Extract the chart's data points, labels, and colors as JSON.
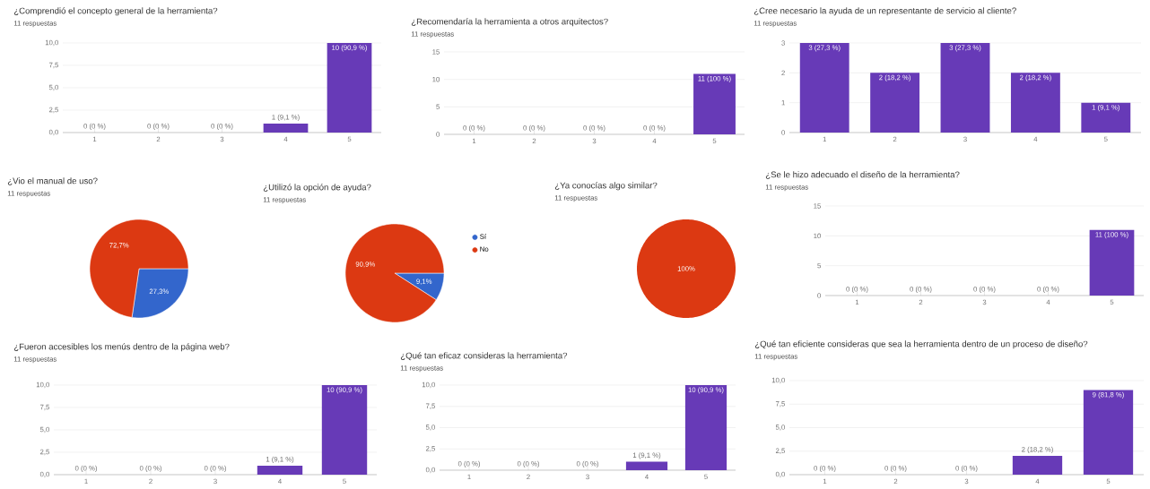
{
  "chart_data": [
    {
      "type": "bar",
      "title": "¿Comprendió el concepto general de la herramienta?",
      "subtitle": "11 respuestas",
      "categories": [
        "1",
        "2",
        "3",
        "4",
        "5"
      ],
      "values": [
        0,
        0,
        0,
        1,
        10
      ],
      "color": "#673ab7",
      "value_labels": [
        "0 (0 %)",
        "0 (0 %)",
        "0 (0 %)",
        "1 (9,1 %)",
        "10 (90,9 %)"
      ],
      "ylim": [
        0,
        10
      ],
      "yticks": [
        {
          "value": 0,
          "label": "0,0"
        },
        {
          "value": 2.5,
          "label": "2,5"
        },
        {
          "value": 5,
          "label": "5,0"
        },
        {
          "value": 7.5,
          "label": "7,5"
        },
        {
          "value": 10,
          "label": "10,0"
        }
      ],
      "grid": "y"
    },
    {
      "type": "bar",
      "title": "¿Recomendaría la herramienta a otros arquitectos?",
      "subtitle": "11 respuestas",
      "categories": [
        "1",
        "2",
        "3",
        "4",
        "5"
      ],
      "values": [
        0,
        0,
        0,
        0,
        11
      ],
      "color": "#673ab7",
      "value_labels": [
        "0 (0 %)",
        "0 (0 %)",
        "0 (0 %)",
        "0 (0 %)",
        "11 (100 %)"
      ],
      "ylim": [
        0,
        15
      ],
      "yticks": [
        0,
        5,
        10,
        15
      ],
      "grid": "y"
    },
    {
      "type": "bar",
      "title": "¿Cree necesario la ayuda de un representante de servicio al cliente?",
      "subtitle": "11 respuestas",
      "categories": [
        "1",
        "2",
        "3",
        "4",
        "5"
      ],
      "values": [
        3,
        2,
        3,
        2,
        1
      ],
      "color": "#673ab7",
      "value_labels": [
        "3 (27,3 %)",
        "2 (18,2 %)",
        "3 (27,3 %)",
        "2 (18,2 %)",
        "1 (9,1 %)"
      ],
      "ylim": [
        0,
        3
      ],
      "yticks": [
        0,
        1,
        2,
        3
      ],
      "grid": "y"
    },
    {
      "type": "pie",
      "title": "¿Vio el manual de uso?",
      "subtitle": "11 respuestas",
      "categories": [
        null,
        null
      ],
      "values": [
        27.3,
        72.7
      ],
      "colors": [
        "#3366cc",
        "#dc3912"
      ],
      "value_labels": [
        "27,3%",
        "72,7%"
      ]
    },
    {
      "type": "pie",
      "title": "¿Utilizó la opción de ayuda?",
      "subtitle": "11 respuestas",
      "categories": [
        "Sí",
        "No"
      ],
      "values": [
        9.1,
        90.9
      ],
      "colors": [
        "#3366cc",
        "#dc3912"
      ],
      "value_labels": [
        "9,1%",
        "90,9%"
      ],
      "legend": "right"
    },
    {
      "type": "pie",
      "title": "¿Ya conocías algo similar?",
      "subtitle": "11 respuestas",
      "categories": [
        null
      ],
      "values": [
        100
      ],
      "colors": [
        "#dc3912"
      ],
      "value_labels": [
        "100%"
      ]
    },
    {
      "type": "bar",
      "title": "¿Se le hizo adecuado el diseño de la herramienta?",
      "subtitle": "11 respuestas",
      "categories": [
        "1",
        "2",
        "3",
        "4",
        "5"
      ],
      "values": [
        0,
        0,
        0,
        0,
        11
      ],
      "color": "#673ab7",
      "value_labels": [
        "0 (0 %)",
        "0 (0 %)",
        "0 (0 %)",
        "0 (0 %)",
        "11 (100 %)"
      ],
      "ylim": [
        0,
        15
      ],
      "yticks": [
        0,
        5,
        10,
        15
      ],
      "grid": "y"
    },
    {
      "type": "bar",
      "title": "¿Fueron accesibles los menús dentro de la página web?",
      "subtitle": "11 respuestas",
      "categories": [
        "1",
        "2",
        "3",
        "4",
        "5"
      ],
      "values": [
        0,
        0,
        0,
        1,
        10
      ],
      "color": "#673ab7",
      "value_labels": [
        "0 (0 %)",
        "0 (0 %)",
        "0 (0 %)",
        "1 (9,1 %)",
        "10 (90,9 %)"
      ],
      "ylim": [
        0,
        10
      ],
      "yticks": [
        {
          "value": 0,
          "label": "0,0"
        },
        {
          "value": 2.5,
          "label": "2,5"
        },
        {
          "value": 5,
          "label": "5,0"
        },
        {
          "value": 7.5,
          "label": "7,5"
        },
        {
          "value": 10,
          "label": "10,0"
        }
      ],
      "grid": "y"
    },
    {
      "type": "bar",
      "title": "¿Qué tan eficaz consideras la herramienta?",
      "subtitle": "11 respuestas",
      "categories": [
        "1",
        "2",
        "3",
        "4",
        "5"
      ],
      "values": [
        0,
        0,
        0,
        1,
        10
      ],
      "color": "#673ab7",
      "value_labels": [
        "0 (0 %)",
        "0 (0 %)",
        "0 (0 %)",
        "1 (9,1 %)",
        "10 (90,9 %)"
      ],
      "ylim": [
        0,
        10
      ],
      "yticks": [
        {
          "value": 0,
          "label": "0,0"
        },
        {
          "value": 2.5,
          "label": "2,5"
        },
        {
          "value": 5,
          "label": "5,0"
        },
        {
          "value": 7.5,
          "label": "7,5"
        },
        {
          "value": 10,
          "label": "10,0"
        }
      ],
      "grid": "y"
    },
    {
      "type": "bar",
      "title": "¿Qué tan eficiente consideras que sea la herramienta dentro de un proceso de diseño?",
      "subtitle": "11 respuestas",
      "categories": [
        "1",
        "2",
        "3",
        "4",
        "5"
      ],
      "values": [
        0,
        0,
        0,
        2,
        9
      ],
      "color": "#673ab7",
      "value_labels": [
        "0 (0 %)",
        "0 (0 %)",
        "0 (0 %)",
        "2 (18,2 %)",
        "9 (81,8 %)"
      ],
      "ylim": [
        0,
        10
      ],
      "yticks": [
        {
          "value": 0,
          "label": "0,0"
        },
        {
          "value": 2.5,
          "label": "2,5"
        },
        {
          "value": 5,
          "label": "5,0"
        },
        {
          "value": 7.5,
          "label": "7,5"
        },
        {
          "value": 10,
          "label": "10,0"
        }
      ],
      "grid": "y"
    }
  ]
}
